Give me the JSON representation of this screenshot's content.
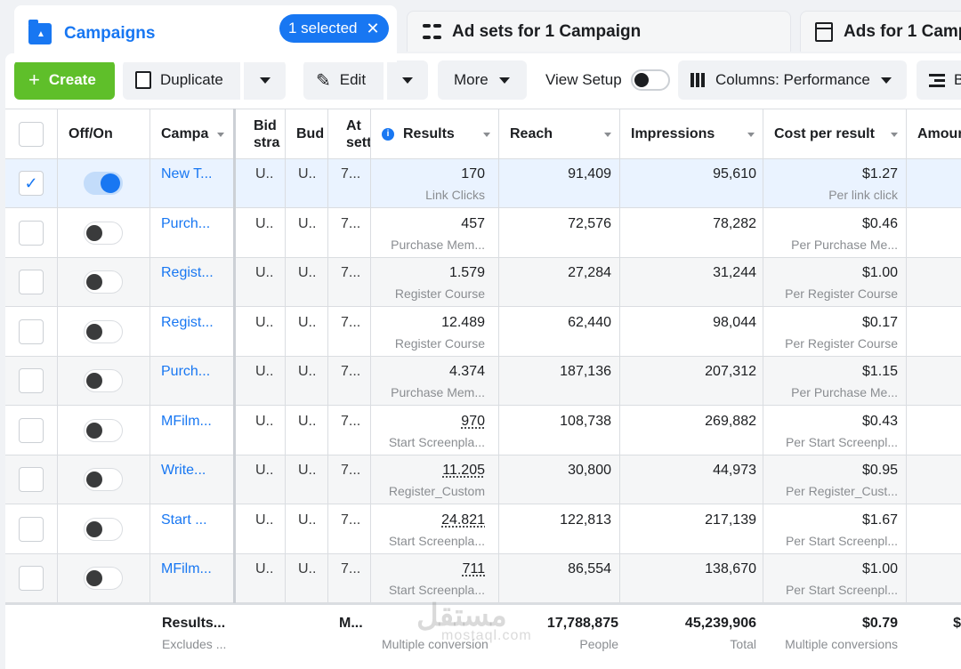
{
  "tabs": {
    "campaigns": {
      "label": "Campaigns",
      "selected_pill": "1 selected",
      "close": "✕"
    },
    "adsets": {
      "label": "Ad sets for 1 Campaign"
    },
    "ads": {
      "label": "Ads for 1 Camp"
    }
  },
  "toolbar": {
    "create": "Create",
    "duplicate": "Duplicate",
    "edit": "Edit",
    "more": "More",
    "view_setup": "View Setup",
    "columns": "Columns: Performance",
    "breakdown": "B"
  },
  "headers": {
    "off_on": "Off/On",
    "campaign": "Campa",
    "bid": "Bid stra",
    "budget": "Bud",
    "attribution": "At sett",
    "results": "Results",
    "reach": "Reach",
    "impressions": "Impressions",
    "cpr": "Cost per result",
    "amount": "Amour"
  },
  "rows": [
    {
      "name": "New T...",
      "bid": "U..",
      "budget": "U..",
      "attr": "7...",
      "results": "170",
      "results_sub": "Link Clicks",
      "reach": "91,409",
      "impressions": "95,610",
      "cpr": "$1.27",
      "cpr_sub": "Per link click",
      "checked": "✓"
    },
    {
      "name": "Purch...",
      "bid": "U..",
      "budget": "U..",
      "attr": "7...",
      "results": "457",
      "results_sub": "Purchase Mem...",
      "reach": "72,576",
      "impressions": "78,282",
      "cpr": "$0.46",
      "cpr_sub": "Per Purchase Me...",
      "checked": ""
    },
    {
      "name": "Regist...",
      "bid": "U..",
      "budget": "U..",
      "attr": "7...",
      "results": "1.579",
      "results_sub": "Register Course",
      "reach": "27,284",
      "impressions": "31,244",
      "cpr": "$1.00",
      "cpr_sub": "Per Register Course",
      "checked": ""
    },
    {
      "name": "Regist...",
      "bid": "U..",
      "budget": "U..",
      "attr": "7...",
      "results": "12.489",
      "results_sub": "Register Course",
      "reach": "62,440",
      "impressions": "98,044",
      "cpr": "$0.17",
      "cpr_sub": "Per Register Course",
      "checked": ""
    },
    {
      "name": "Purch...",
      "bid": "U..",
      "budget": "U..",
      "attr": "7...",
      "results": "4.374",
      "results_sub": "Purchase Mem...",
      "reach": "187,136",
      "impressions": "207,312",
      "cpr": "$1.15",
      "cpr_sub": "Per Purchase Me...",
      "checked": ""
    },
    {
      "name": "MFilm...",
      "bid": "U..",
      "budget": "U..",
      "attr": "7...",
      "results": "970",
      "results_sub": "Start Screenpla...",
      "reach": "108,738",
      "impressions": "269,882",
      "cpr": "$0.43",
      "cpr_sub": "Per Start Screenpl...",
      "checked": ""
    },
    {
      "name": "Write...",
      "bid": "U..",
      "budget": "U..",
      "attr": "7...",
      "results": "11.205",
      "results_sub": "Register_Custom",
      "reach": "30,800",
      "impressions": "44,973",
      "cpr": "$0.95",
      "cpr_sub": "Per Register_Cust...",
      "checked": ""
    },
    {
      "name": "Start ...",
      "bid": "U..",
      "budget": "U..",
      "attr": "7...",
      "results": "24.821",
      "results_sub": "Start Screenpla...",
      "reach": "122,813",
      "impressions": "217,139",
      "cpr": "$1.67",
      "cpr_sub": "Per Start Screenpl...",
      "checked": ""
    },
    {
      "name": "MFilm...",
      "bid": "U..",
      "budget": "U..",
      "attr": "7...",
      "results": "711",
      "results_sub": "Start Screenpla...",
      "reach": "86,554",
      "impressions": "138,670",
      "cpr": "$1.00",
      "cpr_sub": "Per Start Screenpl...",
      "checked": ""
    }
  ],
  "footer": {
    "name": "Results...",
    "name_sub": "Excludes ...",
    "attr": "M...",
    "results_sub": "Multiple conversion",
    "reach": "17,788,875",
    "reach_sub": "People",
    "impressions": "45,239,906",
    "impressions_sub": "Total",
    "cpr": "$0.79",
    "cpr_sub": "Multiple conversions",
    "amount": "$"
  },
  "watermark": {
    "main": "مستقل",
    "sub": "mostaql.com"
  },
  "colors": {
    "accent": "#1877f2",
    "create": "#5fbf2a",
    "selected_row": "#eaf3ff"
  }
}
